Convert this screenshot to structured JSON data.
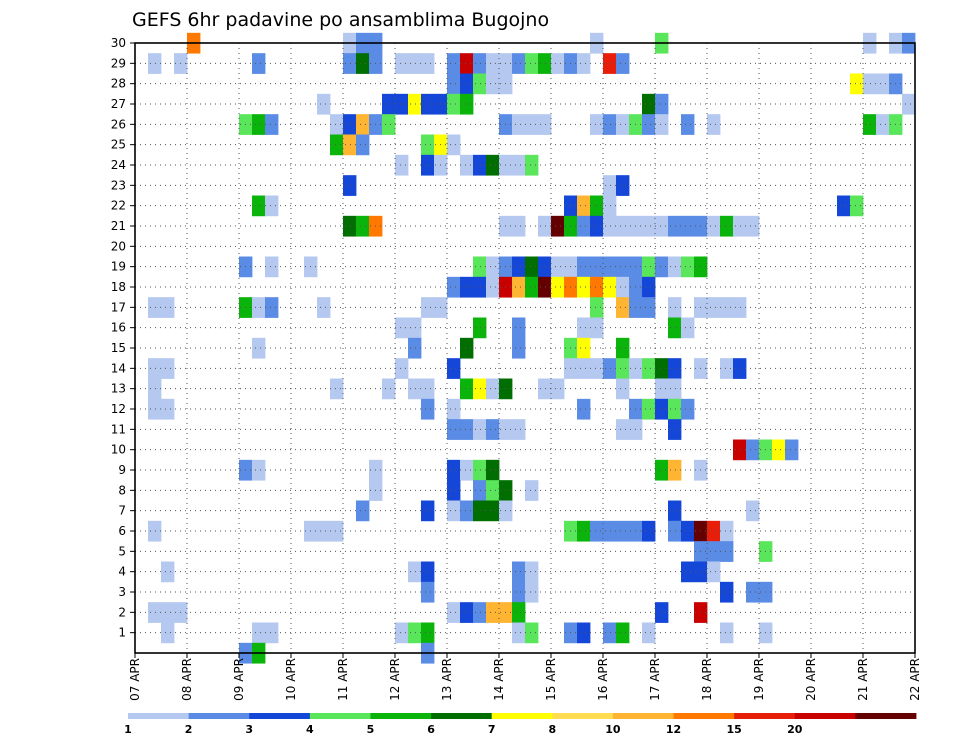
{
  "chart_data": {
    "type": "heatmap",
    "title": "GEFS 6hr padavine po ansamblima Bugojno",
    "xlabel": "",
    "ylabel": "",
    "x_ticks": [
      "07 APR",
      "08 APR",
      "09 APR",
      "10 APR",
      "11 APR",
      "12 APR",
      "13 APR",
      "14 APR",
      "15 APR",
      "16 APR",
      "17 APR",
      "18 APR",
      "19 APR",
      "20 APR",
      "21 APR",
      "22 APR"
    ],
    "y_ticks": [
      1,
      2,
      3,
      4,
      5,
      6,
      7,
      8,
      9,
      10,
      11,
      12,
      13,
      14,
      15,
      16,
      17,
      18,
      19,
      20,
      21,
      22,
      23,
      24,
      25,
      26,
      27,
      28,
      29,
      30
    ],
    "x_range_days": [
      0,
      15
    ],
    "time_step_hours": 6,
    "y_range": [
      0,
      30
    ],
    "grid": true,
    "colorbar": {
      "levels": [
        "1",
        "2",
        "3",
        "4",
        "5",
        "6",
        "7",
        "8",
        "10",
        "12",
        "15",
        "20"
      ],
      "colors": [
        "#b4c8f0",
        "#5a8ce6",
        "#1446d7",
        "#5ae65a",
        "#0ab40a",
        "#006e00",
        "#ffff00",
        "#ffdc50",
        "#ffb432",
        "#ff7800",
        "#e61e0a",
        "#c80000",
        "#640000"
      ]
    },
    "cells": [
      [
        4,
        30,
        10
      ],
      [
        16,
        30,
        1
      ],
      [
        17,
        30,
        2
      ],
      [
        18,
        30,
        2
      ],
      [
        35,
        30,
        1
      ],
      [
        40,
        30,
        4
      ],
      [
        56,
        30,
        1
      ],
      [
        58,
        30,
        1
      ],
      [
        59,
        30,
        2
      ],
      [
        1,
        29,
        1
      ],
      [
        3,
        29,
        1
      ],
      [
        9,
        29,
        2
      ],
      [
        16,
        29,
        2
      ],
      [
        17,
        29,
        6
      ],
      [
        18,
        29,
        2
      ],
      [
        20,
        29,
        1
      ],
      [
        21,
        29,
        1
      ],
      [
        22,
        29,
        1
      ],
      [
        24,
        29,
        2
      ],
      [
        25,
        29,
        12
      ],
      [
        26,
        29,
        2
      ],
      [
        27,
        29,
        1
      ],
      [
        28,
        29,
        1
      ],
      [
        29,
        29,
        2
      ],
      [
        30,
        29,
        4
      ],
      [
        31,
        29,
        5
      ],
      [
        32,
        29,
        1
      ],
      [
        33,
        29,
        2
      ],
      [
        34,
        29,
        1
      ],
      [
        36,
        29,
        11
      ],
      [
        37,
        29,
        2
      ],
      [
        24,
        28,
        2
      ],
      [
        25,
        28,
        3
      ],
      [
        26,
        28,
        4
      ],
      [
        27,
        28,
        1
      ],
      [
        28,
        28,
        1
      ],
      [
        55,
        28,
        7
      ],
      [
        56,
        28,
        1
      ],
      [
        57,
        28,
        1
      ],
      [
        58,
        28,
        2
      ],
      [
        14,
        27,
        1
      ],
      [
        19,
        27,
        3
      ],
      [
        20,
        27,
        3
      ],
      [
        21,
        27,
        7
      ],
      [
        22,
        27,
        3
      ],
      [
        23,
        27,
        3
      ],
      [
        24,
        27,
        4
      ],
      [
        25,
        27,
        5
      ],
      [
        39,
        27,
        6
      ],
      [
        40,
        27,
        2
      ],
      [
        59,
        27,
        1
      ],
      [
        8,
        26,
        4
      ],
      [
        9,
        26,
        5
      ],
      [
        10,
        26,
        2
      ],
      [
        15,
        26,
        1
      ],
      [
        16,
        26,
        3
      ],
      [
        17,
        26,
        9
      ],
      [
        18,
        26,
        2
      ],
      [
        19,
        26,
        4
      ],
      [
        28,
        26,
        2
      ],
      [
        29,
        26,
        1
      ],
      [
        30,
        26,
        1
      ],
      [
        31,
        26,
        1
      ],
      [
        35,
        26,
        1
      ],
      [
        36,
        26,
        2
      ],
      [
        37,
        26,
        1
      ],
      [
        38,
        26,
        4
      ],
      [
        39,
        26,
        2
      ],
      [
        40,
        26,
        1
      ],
      [
        42,
        26,
        2
      ],
      [
        44,
        26,
        1
      ],
      [
        56,
        26,
        5
      ],
      [
        57,
        26,
        1
      ],
      [
        58,
        26,
        4
      ],
      [
        15,
        25,
        5
      ],
      [
        16,
        25,
        9
      ],
      [
        17,
        25,
        2
      ],
      [
        22,
        25,
        4
      ],
      [
        23,
        25,
        7
      ],
      [
        24,
        25,
        1
      ],
      [
        20,
        24,
        1
      ],
      [
        22,
        24,
        3
      ],
      [
        23,
        24,
        1
      ],
      [
        25,
        24,
        1
      ],
      [
        26,
        24,
        3
      ],
      [
        27,
        24,
        6
      ],
      [
        28,
        24,
        1
      ],
      [
        29,
        24,
        1
      ],
      [
        30,
        24,
        4
      ],
      [
        16,
        23,
        3
      ],
      [
        36,
        23,
        1
      ],
      [
        37,
        23,
        3
      ],
      [
        9,
        22,
        5
      ],
      [
        10,
        22,
        1
      ],
      [
        33,
        22,
        3
      ],
      [
        34,
        22,
        9
      ],
      [
        35,
        22,
        5
      ],
      [
        36,
        22,
        1
      ],
      [
        54,
        22,
        3
      ],
      [
        55,
        22,
        4
      ],
      [
        16,
        21,
        6
      ],
      [
        17,
        21,
        5
      ],
      [
        18,
        21,
        10
      ],
      [
        28,
        21,
        1
      ],
      [
        29,
        21,
        1
      ],
      [
        31,
        21,
        1
      ],
      [
        32,
        21,
        13
      ],
      [
        33,
        21,
        5
      ],
      [
        34,
        21,
        2
      ],
      [
        35,
        21,
        3
      ],
      [
        36,
        21,
        1
      ],
      [
        37,
        21,
        1
      ],
      [
        38,
        21,
        1
      ],
      [
        39,
        21,
        1
      ],
      [
        40,
        21,
        1
      ],
      [
        41,
        21,
        2
      ],
      [
        42,
        21,
        2
      ],
      [
        43,
        21,
        2
      ],
      [
        44,
        21,
        1
      ],
      [
        45,
        21,
        5
      ],
      [
        46,
        21,
        1
      ],
      [
        47,
        21,
        1
      ],
      [
        8,
        19,
        2
      ],
      [
        10,
        19,
        1
      ],
      [
        13,
        19,
        1
      ],
      [
        26,
        19,
        4
      ],
      [
        27,
        19,
        1
      ],
      [
        28,
        19,
        2
      ],
      [
        29,
        19,
        3
      ],
      [
        30,
        19,
        6
      ],
      [
        31,
        19,
        3
      ],
      [
        32,
        19,
        1
      ],
      [
        33,
        19,
        1
      ],
      [
        34,
        19,
        2
      ],
      [
        35,
        19,
        2
      ],
      [
        36,
        19,
        2
      ],
      [
        37,
        19,
        2
      ],
      [
        38,
        19,
        2
      ],
      [
        39,
        19,
        4
      ],
      [
        40,
        19,
        2
      ],
      [
        41,
        19,
        1
      ],
      [
        42,
        19,
        4
      ],
      [
        43,
        19,
        5
      ],
      [
        24,
        18,
        2
      ],
      [
        25,
        18,
        3
      ],
      [
        26,
        18,
        3
      ],
      [
        27,
        18,
        1
      ],
      [
        28,
        18,
        12
      ],
      [
        29,
        18,
        9
      ],
      [
        30,
        18,
        5
      ],
      [
        31,
        18,
        13
      ],
      [
        32,
        18,
        7
      ],
      [
        33,
        18,
        10
      ],
      [
        34,
        18,
        7
      ],
      [
        35,
        18,
        10
      ],
      [
        36,
        18,
        7
      ],
      [
        37,
        18,
        1
      ],
      [
        38,
        18,
        2
      ],
      [
        39,
        18,
        3
      ],
      [
        1,
        17,
        1
      ],
      [
        2,
        17,
        1
      ],
      [
        8,
        17,
        5
      ],
      [
        9,
        17,
        1
      ],
      [
        10,
        17,
        2
      ],
      [
        14,
        17,
        1
      ],
      [
        22,
        17,
        1
      ],
      [
        23,
        17,
        1
      ],
      [
        35,
        17,
        4
      ],
      [
        37,
        17,
        9
      ],
      [
        38,
        17,
        2
      ],
      [
        39,
        17,
        2
      ],
      [
        41,
        17,
        1
      ],
      [
        43,
        17,
        1
      ],
      [
        44,
        17,
        1
      ],
      [
        45,
        17,
        1
      ],
      [
        46,
        17,
        1
      ],
      [
        20,
        16,
        1
      ],
      [
        21,
        16,
        1
      ],
      [
        26,
        16,
        5
      ],
      [
        29,
        16,
        2
      ],
      [
        34,
        16,
        1
      ],
      [
        35,
        16,
        1
      ],
      [
        41,
        16,
        5
      ],
      [
        42,
        16,
        1
      ],
      [
        9,
        15,
        1
      ],
      [
        21,
        15,
        2
      ],
      [
        25,
        15,
        6
      ],
      [
        29,
        15,
        2
      ],
      [
        33,
        15,
        4
      ],
      [
        34,
        15,
        7
      ],
      [
        37,
        15,
        5
      ],
      [
        1,
        14,
        1
      ],
      [
        2,
        14,
        1
      ],
      [
        20,
        14,
        1
      ],
      [
        24,
        14,
        3
      ],
      [
        33,
        14,
        1
      ],
      [
        34,
        14,
        1
      ],
      [
        35,
        14,
        1
      ],
      [
        36,
        14,
        2
      ],
      [
        37,
        14,
        4
      ],
      [
        38,
        14,
        1
      ],
      [
        39,
        14,
        4
      ],
      [
        40,
        14,
        6
      ],
      [
        41,
        14,
        3
      ],
      [
        43,
        14,
        1
      ],
      [
        45,
        14,
        1
      ],
      [
        46,
        14,
        3
      ],
      [
        1,
        13,
        1
      ],
      [
        15,
        13,
        1
      ],
      [
        19,
        13,
        1
      ],
      [
        21,
        13,
        1
      ],
      [
        22,
        13,
        1
      ],
      [
        25,
        13,
        5
      ],
      [
        26,
        13,
        7
      ],
      [
        27,
        13,
        1
      ],
      [
        28,
        13,
        6
      ],
      [
        31,
        13,
        1
      ],
      [
        32,
        13,
        1
      ],
      [
        37,
        13,
        1
      ],
      [
        40,
        13,
        1
      ],
      [
        41,
        13,
        1
      ],
      [
        1,
        12,
        1
      ],
      [
        2,
        12,
        1
      ],
      [
        22,
        12,
        2
      ],
      [
        24,
        12,
        1
      ],
      [
        34,
        12,
        2
      ],
      [
        38,
        12,
        2
      ],
      [
        39,
        12,
        4
      ],
      [
        40,
        12,
        3
      ],
      [
        41,
        12,
        4
      ],
      [
        42,
        12,
        2
      ],
      [
        24,
        11,
        2
      ],
      [
        25,
        11,
        2
      ],
      [
        26,
        11,
        1
      ],
      [
        27,
        11,
        2
      ],
      [
        28,
        11,
        1
      ],
      [
        29,
        11,
        1
      ],
      [
        37,
        11,
        1
      ],
      [
        38,
        11,
        1
      ],
      [
        41,
        11,
        3
      ],
      [
        46,
        10,
        12
      ],
      [
        47,
        10,
        2
      ],
      [
        48,
        10,
        4
      ],
      [
        49,
        10,
        7
      ],
      [
        50,
        10,
        2
      ],
      [
        8,
        9,
        2
      ],
      [
        9,
        9,
        1
      ],
      [
        18,
        9,
        1
      ],
      [
        24,
        9,
        3
      ],
      [
        25,
        9,
        1
      ],
      [
        26,
        9,
        4
      ],
      [
        27,
        9,
        6
      ],
      [
        40,
        9,
        5
      ],
      [
        41,
        9,
        9
      ],
      [
        43,
        9,
        1
      ],
      [
        18,
        8,
        1
      ],
      [
        24,
        8,
        3
      ],
      [
        26,
        8,
        2
      ],
      [
        27,
        8,
        4
      ],
      [
        28,
        8,
        6
      ],
      [
        30,
        8,
        1
      ],
      [
        17,
        7,
        2
      ],
      [
        22,
        7,
        3
      ],
      [
        24,
        7,
        1
      ],
      [
        25,
        7,
        2
      ],
      [
        26,
        7,
        6
      ],
      [
        27,
        7,
        6
      ],
      [
        28,
        7,
        1
      ],
      [
        41,
        7,
        3
      ],
      [
        47,
        7,
        1
      ],
      [
        1,
        6,
        1
      ],
      [
        13,
        6,
        1
      ],
      [
        14,
        6,
        1
      ],
      [
        15,
        6,
        1
      ],
      [
        33,
        6,
        4
      ],
      [
        34,
        6,
        5
      ],
      [
        35,
        6,
        2
      ],
      [
        36,
        6,
        2
      ],
      [
        37,
        6,
        2
      ],
      [
        38,
        6,
        2
      ],
      [
        39,
        6,
        3
      ],
      [
        41,
        6,
        2
      ],
      [
        42,
        6,
        3
      ],
      [
        43,
        6,
        13
      ],
      [
        44,
        6,
        11
      ],
      [
        45,
        6,
        1
      ],
      [
        43,
        5,
        2
      ],
      [
        44,
        5,
        2
      ],
      [
        45,
        5,
        2
      ],
      [
        48,
        5,
        4
      ],
      [
        2,
        4,
        1
      ],
      [
        21,
        4,
        1
      ],
      [
        22,
        4,
        3
      ],
      [
        29,
        4,
        2
      ],
      [
        30,
        4,
        1
      ],
      [
        42,
        4,
        3
      ],
      [
        43,
        4,
        3
      ],
      [
        44,
        4,
        1
      ],
      [
        22,
        3,
        2
      ],
      [
        29,
        3,
        2
      ],
      [
        30,
        3,
        1
      ],
      [
        45,
        3,
        3
      ],
      [
        47,
        3,
        2
      ],
      [
        48,
        3,
        2
      ],
      [
        1,
        2,
        1
      ],
      [
        2,
        2,
        1
      ],
      [
        3,
        2,
        1
      ],
      [
        24,
        2,
        1
      ],
      [
        25,
        2,
        3
      ],
      [
        26,
        2,
        2
      ],
      [
        27,
        2,
        9
      ],
      [
        28,
        2,
        9
      ],
      [
        29,
        2,
        5
      ],
      [
        40,
        2,
        3
      ],
      [
        43,
        2,
        12
      ],
      [
        2,
        1,
        1
      ],
      [
        9,
        1,
        1
      ],
      [
        10,
        1,
        1
      ],
      [
        20,
        1,
        1
      ],
      [
        21,
        1,
        4
      ],
      [
        22,
        1,
        5
      ],
      [
        29,
        1,
        1
      ],
      [
        30,
        1,
        4
      ],
      [
        33,
        1,
        2
      ],
      [
        34,
        1,
        3
      ],
      [
        36,
        1,
        2
      ],
      [
        37,
        1,
        5
      ],
      [
        39,
        1,
        1
      ],
      [
        45,
        1,
        1
      ],
      [
        48,
        1,
        1
      ],
      [
        8,
        0,
        2
      ],
      [
        9,
        0,
        5
      ],
      [
        22,
        0,
        2
      ]
    ]
  }
}
